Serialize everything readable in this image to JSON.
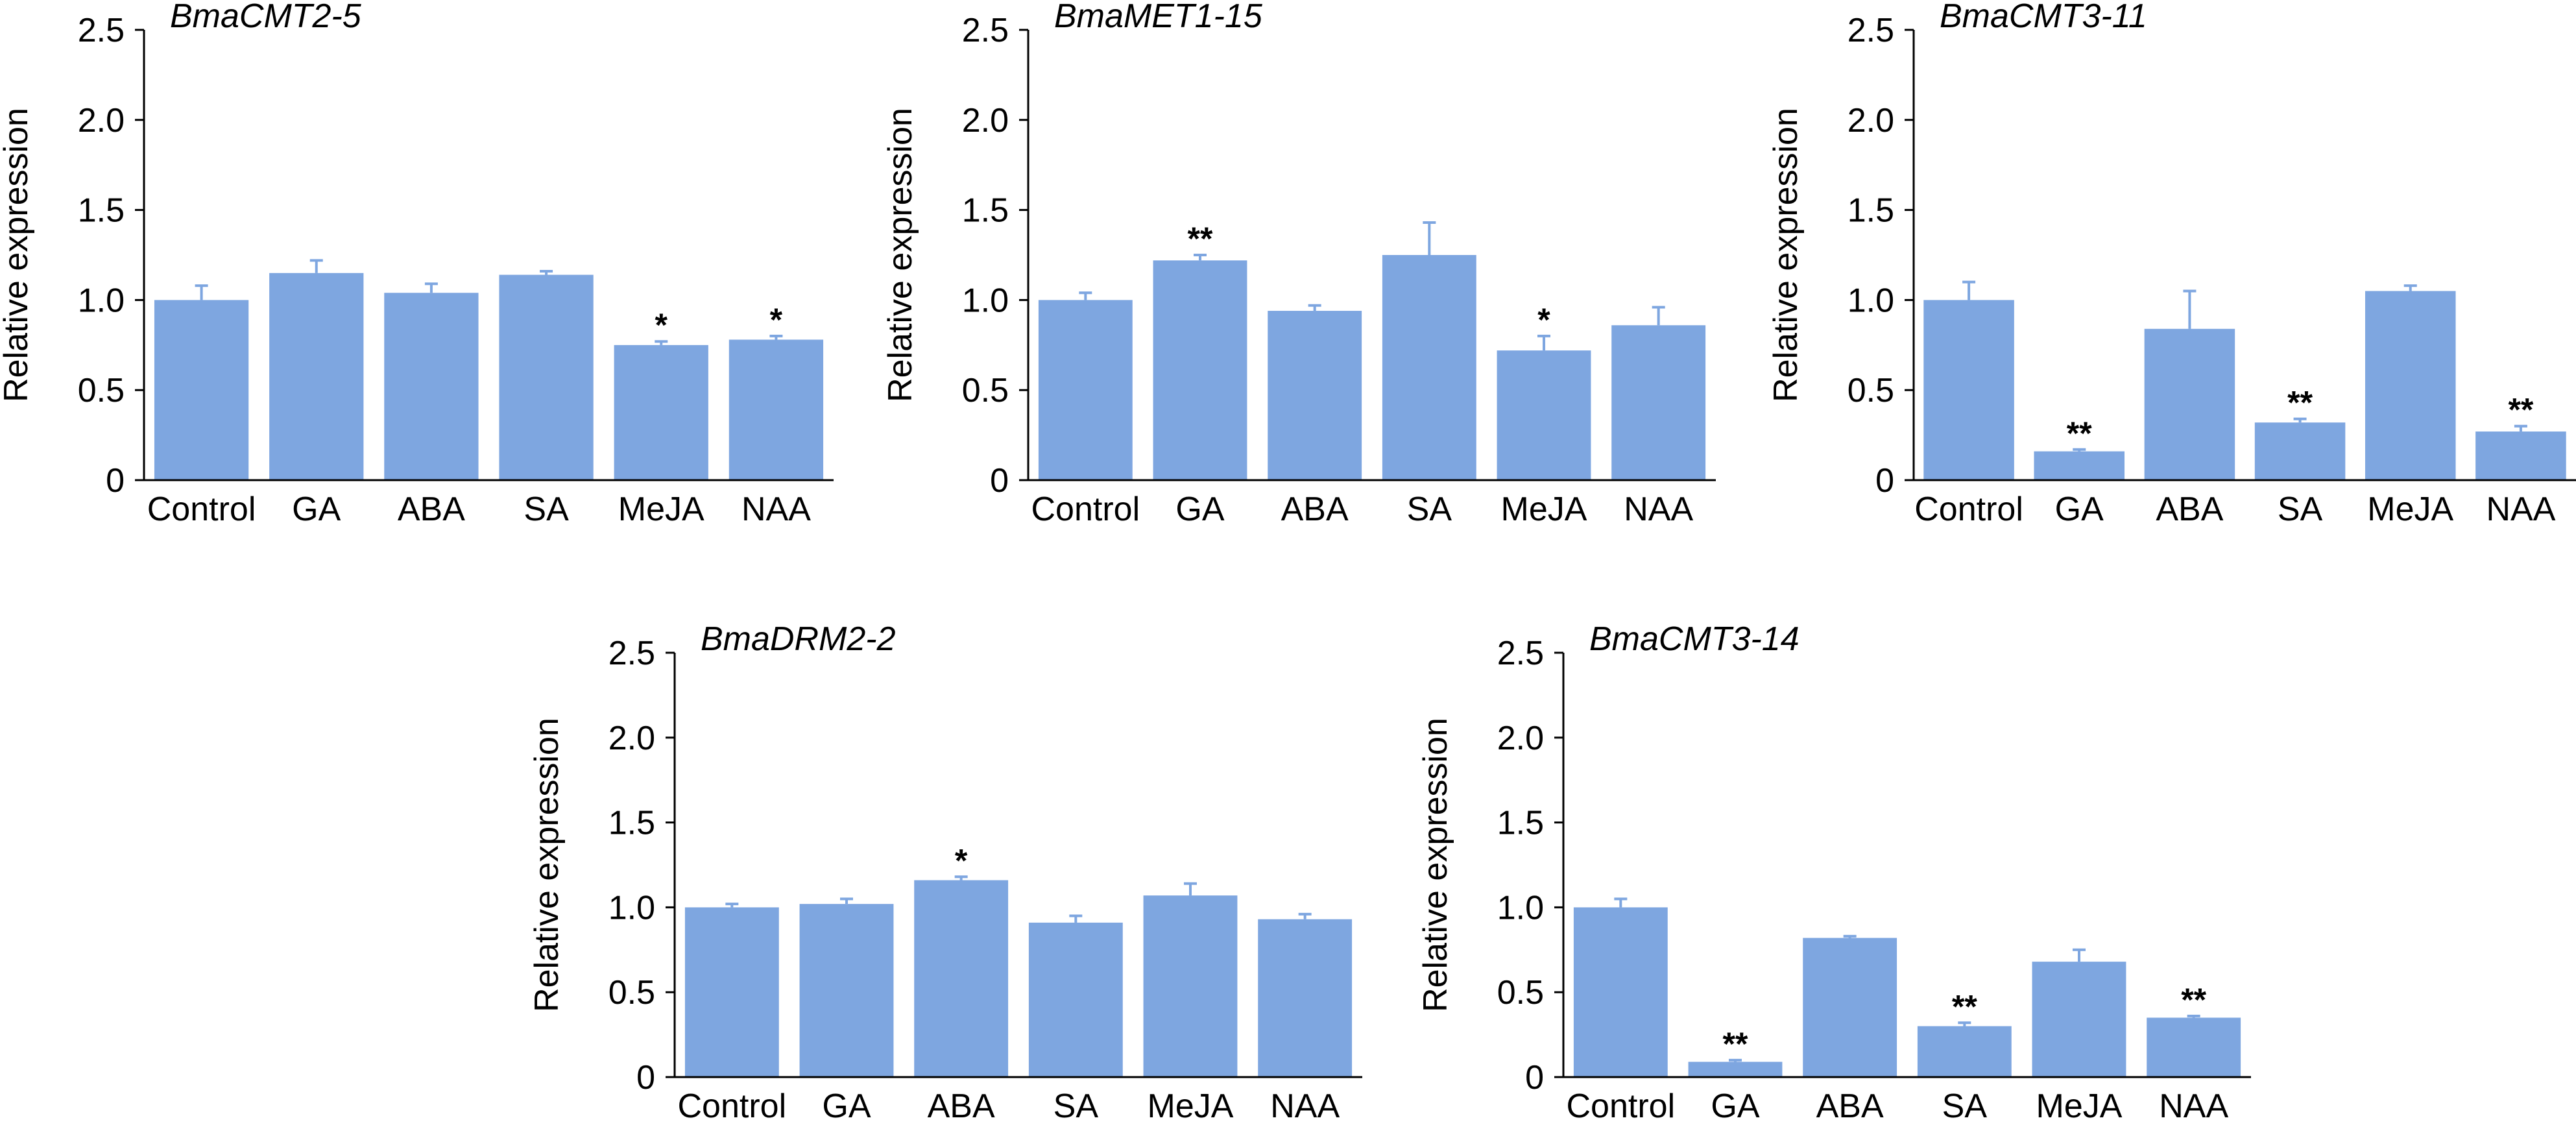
{
  "chart_data": [
    {
      "type": "bar",
      "title": "BmaCMT2-5",
      "ylabel": "Relative expression",
      "xlabel": "",
      "ylim": [
        0,
        2.5
      ],
      "yticks": [
        "0",
        "0.5",
        "1.0",
        "1.5",
        "2.0",
        "2.5"
      ],
      "categories": [
        "Control",
        "GA",
        "ABA",
        "SA",
        "MeJA",
        "NAA"
      ],
      "values": [
        1.0,
        1.15,
        1.04,
        1.14,
        0.75,
        0.78
      ],
      "errors": [
        0.08,
        0.07,
        0.05,
        0.02,
        0.02,
        0.02
      ],
      "significance": [
        "",
        "",
        "",
        "",
        "*",
        "*"
      ],
      "bar_color": "#7ea6e0",
      "grid": false
    },
    {
      "type": "bar",
      "title": "BmaMET1-15",
      "ylabel": "Relative expression",
      "xlabel": "",
      "ylim": [
        0,
        2.5
      ],
      "yticks": [
        "0",
        "0.5",
        "1.0",
        "1.5",
        "2.0",
        "2.5"
      ],
      "categories": [
        "Control",
        "GA",
        "ABA",
        "SA",
        "MeJA",
        "NAA"
      ],
      "values": [
        1.0,
        1.22,
        0.94,
        1.25,
        0.72,
        0.86
      ],
      "errors": [
        0.04,
        0.03,
        0.03,
        0.18,
        0.08,
        0.1
      ],
      "significance": [
        "",
        "**",
        "",
        "",
        "*",
        ""
      ],
      "bar_color": "#7ea6e0",
      "grid": false
    },
    {
      "type": "bar",
      "title": "BmaCMT3-11",
      "ylabel": "Relative expression",
      "xlabel": "",
      "ylim": [
        0,
        2.5
      ],
      "yticks": [
        "0",
        "0.5",
        "1.0",
        "1.5",
        "2.0",
        "2.5"
      ],
      "categories": [
        "Control",
        "GA",
        "ABA",
        "SA",
        "MeJA",
        "NAA"
      ],
      "values": [
        1.0,
        0.16,
        0.84,
        0.32,
        1.05,
        0.27
      ],
      "errors": [
        0.1,
        0.01,
        0.21,
        0.02,
        0.03,
        0.03
      ],
      "significance": [
        "",
        "**",
        "",
        "**",
        "",
        "**"
      ],
      "bar_color": "#7ea6e0",
      "grid": false
    },
    {
      "type": "bar",
      "title": "BmaDRM2-2",
      "ylabel": "Relative expression",
      "xlabel": "",
      "ylim": [
        0,
        2.5
      ],
      "yticks": [
        "0",
        "0.5",
        "1.0",
        "1.5",
        "2.0",
        "2.5"
      ],
      "categories": [
        "Control",
        "GA",
        "ABA",
        "SA",
        "MeJA",
        "NAA"
      ],
      "values": [
        1.0,
        1.02,
        1.16,
        0.91,
        1.07,
        0.93
      ],
      "errors": [
        0.02,
        0.03,
        0.02,
        0.04,
        0.07,
        0.03
      ],
      "significance": [
        "",
        "",
        "*",
        "",
        "",
        ""
      ],
      "bar_color": "#7ea6e0",
      "grid": false
    },
    {
      "type": "bar",
      "title": "BmaCMT3-14",
      "ylabel": "Relative expression",
      "xlabel": "",
      "ylim": [
        0,
        2.5
      ],
      "yticks": [
        "0",
        "0.5",
        "1.0",
        "1.5",
        "2.0",
        "2.5"
      ],
      "categories": [
        "Control",
        "GA",
        "ABA",
        "SA",
        "MeJA",
        "NAA"
      ],
      "values": [
        1.0,
        0.09,
        0.82,
        0.3,
        0.68,
        0.35
      ],
      "errors": [
        0.05,
        0.01,
        0.01,
        0.02,
        0.07,
        0.01
      ],
      "significance": [
        "",
        "**",
        "",
        "**",
        "",
        "**"
      ],
      "bar_color": "#7ea6e0",
      "grid": false
    }
  ]
}
